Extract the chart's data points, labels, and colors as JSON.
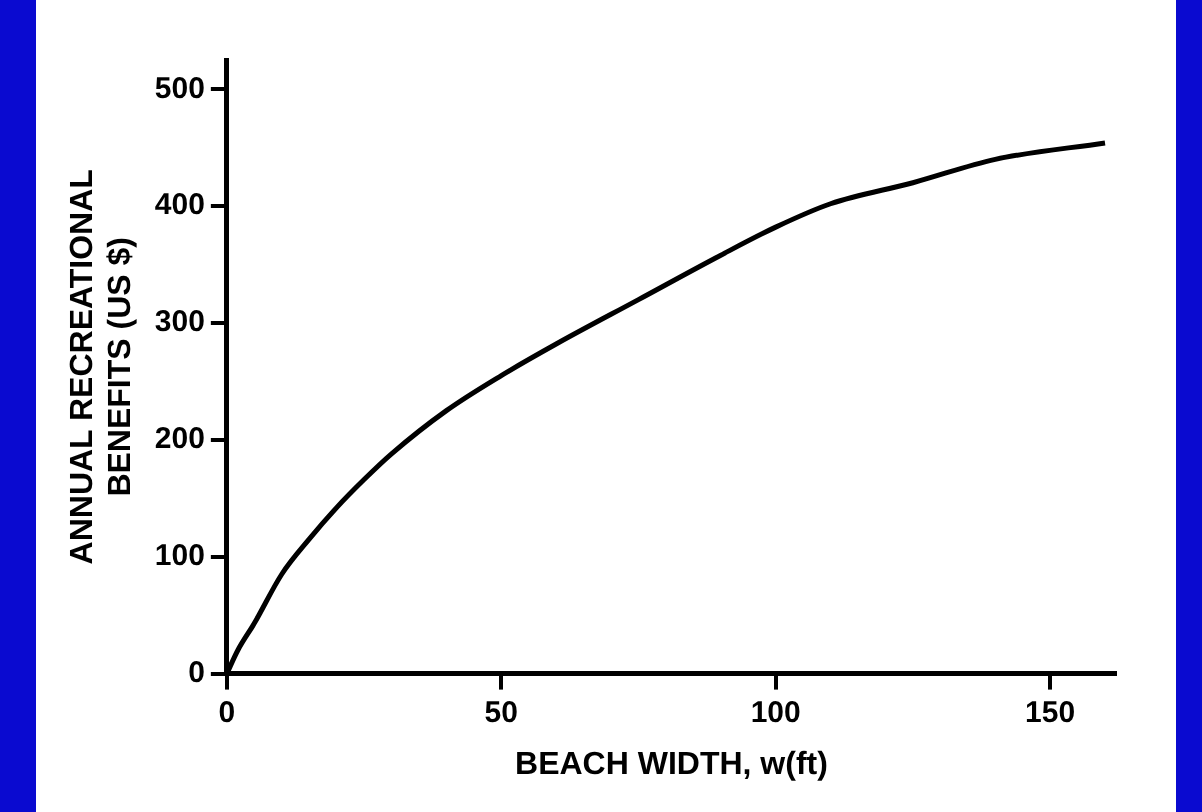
{
  "chart_data": {
    "type": "line",
    "xlabel": "BEACH WIDTH, w(ft)",
    "ylabel": "ANNUAL RECREATIONAL\nBENEFITS (US $)",
    "x": [
      0,
      2,
      5,
      10,
      15,
      20,
      25,
      30,
      40,
      50,
      60,
      75,
      90,
      100,
      110,
      125,
      140,
      160
    ],
    "series": [
      {
        "color": "#000000",
        "values": [
          0,
          20,
          43,
          85,
          115,
          142,
          166,
          188,
          225,
          255,
          282,
          320,
          358,
          382,
          402,
          420,
          440,
          454
        ]
      }
    ],
    "xlim": [
      0,
      162
    ],
    "ylim": [
      0,
      525
    ],
    "xticks": [
      0,
      50,
      100,
      150
    ],
    "yticks": [
      0,
      100,
      200,
      300,
      400,
      500
    ],
    "grid": false,
    "legend": false,
    "marker": "none",
    "line_style": "solid"
  }
}
